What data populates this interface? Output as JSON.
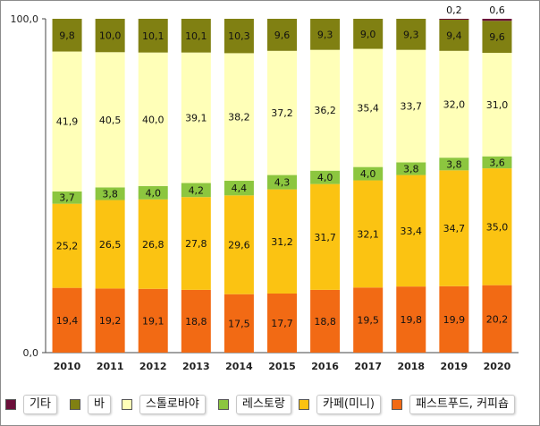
{
  "chart_data": {
    "type": "bar",
    "stacked": true,
    "categories": [
      "2010",
      "2011",
      "2012",
      "2013",
      "2014",
      "2015",
      "2016",
      "2017",
      "2018",
      "2019",
      "2020"
    ],
    "ylim": [
      0,
      100
    ],
    "ytick_labels": [
      "0,0",
      "100,0"
    ],
    "series": [
      {
        "name": "패스트푸드, 커피숍",
        "color": "#f26a14",
        "values": [
          19.4,
          19.2,
          19.1,
          18.8,
          17.5,
          17.7,
          18.8,
          19.5,
          19.8,
          19.9,
          20.2
        ],
        "labels": [
          "19,4",
          "19,2",
          "19,1",
          "18,8",
          "17,5",
          "17,7",
          "18,8",
          "19,5",
          "19,8",
          "19,9",
          "20,2"
        ]
      },
      {
        "name": "카페(미니)",
        "color": "#fbc312",
        "values": [
          25.2,
          26.5,
          26.8,
          27.8,
          29.6,
          31.2,
          31.7,
          32.1,
          33.4,
          34.7,
          35.0
        ],
        "labels": [
          "25,2",
          "26,5",
          "26,8",
          "27,8",
          "29,6",
          "31,2",
          "31,7",
          "32,1",
          "33,4",
          "34,7",
          "35,0"
        ]
      },
      {
        "name": "레스토랑",
        "color": "#8cc63f",
        "values": [
          3.7,
          3.8,
          4.0,
          4.2,
          4.4,
          4.3,
          4.0,
          4.0,
          3.8,
          3.8,
          3.6
        ],
        "labels": [
          "3,7",
          "3,8",
          "4,0",
          "4,2",
          "4,4",
          "4,3",
          "4,0",
          "4,0",
          "3,8",
          "3,8",
          "3,6"
        ]
      },
      {
        "name": "스톨로바야",
        "color": "#ffffb8",
        "values": [
          41.9,
          40.5,
          40.0,
          39.1,
          38.2,
          37.2,
          36.2,
          35.4,
          33.7,
          32.0,
          31.0
        ],
        "labels": [
          "41,9",
          "40,5",
          "40,0",
          "39,1",
          "38,2",
          "37,2",
          "36,2",
          "35,4",
          "33,7",
          "32,0",
          "31,0"
        ]
      },
      {
        "name": "바",
        "color": "#808012",
        "values": [
          9.8,
          10.0,
          10.1,
          10.1,
          10.3,
          9.6,
          9.3,
          9.0,
          9.3,
          9.4,
          9.6
        ],
        "labels": [
          "9,8",
          "10,0",
          "10,1",
          "10,1",
          "10,3",
          "9,6",
          "9,3",
          "9,0",
          "9,3",
          "9,4",
          "9,6"
        ]
      },
      {
        "name": "기타",
        "color": "#6b0f3a",
        "values": [
          0,
          0,
          0,
          0,
          0,
          0,
          0,
          0,
          0,
          0.2,
          0.6
        ],
        "labels": [
          "",
          "",
          "",
          "",
          "",
          "",
          "",
          "",
          "",
          "0,2",
          "0,6"
        ]
      }
    ]
  },
  "legend": [
    {
      "label": "기타",
      "color": "#6b0f3a"
    },
    {
      "label": "바",
      "color": "#808012"
    },
    {
      "label": "스톨로바야",
      "color": "#ffffb8"
    },
    {
      "label": "레스토랑",
      "color": "#8cc63f"
    },
    {
      "label": "카페(미니)",
      "color": "#fbc312"
    },
    {
      "label": "패스트푸드, 커피숍",
      "color": "#f26a14"
    }
  ]
}
